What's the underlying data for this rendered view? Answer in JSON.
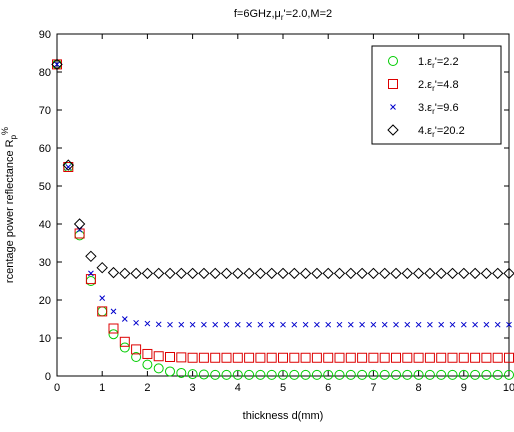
{
  "chart_data": {
    "type": "scatter",
    "title": "f=6GHz,μ",
    "title_sub": "r",
    "title_rest": "'=2.0,M=2",
    "xlabel": "thickness d(mm)",
    "ylabel_main": "rcentage power reflectance R",
    "ylabel_sub": "p",
    "ylabel_sup": "%",
    "xlim": [
      0,
      10
    ],
    "ylim": [
      0,
      90
    ],
    "xticks": [
      "0",
      "1",
      "2",
      "3",
      "4",
      "5",
      "6",
      "7",
      "8",
      "9",
      "10"
    ],
    "yticks": [
      "0",
      "10",
      "20",
      "30",
      "40",
      "50",
      "60",
      "70",
      "80",
      "90"
    ],
    "grid": false,
    "legend_position": "top-right",
    "series": [
      {
        "name": "1.ε",
        "name_sub": "r",
        "name_rest": "'=2.2",
        "marker": "circle",
        "color": "#00cc00",
        "x": [
          0,
          0.25,
          0.5,
          0.75,
          1,
          1.25,
          1.5,
          1.75,
          2,
          2.25,
          2.5,
          2.75,
          3,
          3.25,
          3.5,
          3.75,
          4,
          4.25,
          4.5,
          4.75,
          5,
          5.25,
          5.5,
          5.75,
          6,
          6.25,
          6.5,
          6.75,
          7,
          7.25,
          7.5,
          7.75,
          8,
          8.25,
          8.5,
          8.75,
          9,
          9.25,
          9.5,
          9.75,
          10
        ],
        "y": [
          82,
          55,
          37,
          25,
          17,
          11,
          7.5,
          5,
          3,
          2,
          1.2,
          0.8,
          0.5,
          0.4,
          0.3,
          0.3,
          0.3,
          0.3,
          0.3,
          0.3,
          0.3,
          0.3,
          0.3,
          0.3,
          0.3,
          0.3,
          0.3,
          0.3,
          0.3,
          0.3,
          0.3,
          0.3,
          0.3,
          0.3,
          0.3,
          0.3,
          0.3,
          0.3,
          0.3,
          0.3,
          0.3
        ]
      },
      {
        "name": "2.ε",
        "name_sub": "r",
        "name_rest": "'=4.8",
        "marker": "square",
        "color": "#dd0000",
        "x": [
          0,
          0.25,
          0.5,
          0.75,
          1,
          1.25,
          1.5,
          1.75,
          2,
          2.25,
          2.5,
          2.75,
          3,
          3.25,
          3.5,
          3.75,
          4,
          4.25,
          4.5,
          4.75,
          5,
          5.25,
          5.5,
          5.75,
          6,
          6.25,
          6.5,
          6.75,
          7,
          7.25,
          7.5,
          7.75,
          8,
          8.25,
          8.5,
          8.75,
          9,
          9.25,
          9.5,
          9.75,
          10
        ],
        "y": [
          82,
          55,
          37.5,
          25.5,
          17,
          12.5,
          9,
          7,
          5.8,
          5.2,
          5,
          4.9,
          4.8,
          4.8,
          4.8,
          4.8,
          4.8,
          4.8,
          4.8,
          4.8,
          4.8,
          4.8,
          4.8,
          4.8,
          4.8,
          4.8,
          4.8,
          4.8,
          4.8,
          4.8,
          4.8,
          4.8,
          4.8,
          4.8,
          4.8,
          4.8,
          4.8,
          4.8,
          4.8,
          4.8,
          4.8
        ]
      },
      {
        "name": "3.ε",
        "name_sub": "r",
        "name_rest": "'=9.6",
        "marker": "x",
        "color": "#0000cc",
        "x": [
          0,
          0.25,
          0.5,
          0.75,
          1,
          1.25,
          1.5,
          1.75,
          2,
          2.25,
          2.5,
          2.75,
          3,
          3.25,
          3.5,
          3.75,
          4,
          4.25,
          4.5,
          4.75,
          5,
          5.25,
          5.5,
          5.75,
          6,
          6.25,
          6.5,
          6.75,
          7,
          7.25,
          7.5,
          7.75,
          8,
          8.25,
          8.5,
          8.75,
          9,
          9.25,
          9.5,
          9.75,
          10
        ],
        "y": [
          82,
          55,
          38.5,
          27,
          20.5,
          17,
          15,
          14,
          13.8,
          13.6,
          13.5,
          13.5,
          13.5,
          13.5,
          13.5,
          13.5,
          13.5,
          13.5,
          13.5,
          13.5,
          13.5,
          13.5,
          13.5,
          13.5,
          13.5,
          13.5,
          13.5,
          13.5,
          13.5,
          13.5,
          13.5,
          13.5,
          13.5,
          13.5,
          13.5,
          13.5,
          13.5,
          13.5,
          13.5,
          13.5,
          13.5
        ]
      },
      {
        "name": "4.ε",
        "name_sub": "r",
        "name_rest": "'=20.2",
        "marker": "diamond",
        "color": "#000000",
        "x": [
          0,
          0.25,
          0.5,
          0.75,
          1,
          1.25,
          1.5,
          1.75,
          2,
          2.25,
          2.5,
          2.75,
          3,
          3.25,
          3.5,
          3.75,
          4,
          4.25,
          4.5,
          4.75,
          5,
          5.25,
          5.5,
          5.75,
          6,
          6.25,
          6.5,
          6.75,
          7,
          7.25,
          7.5,
          7.75,
          8,
          8.25,
          8.5,
          8.75,
          9,
          9.25,
          9.5,
          9.75,
          10
        ],
        "y": [
          82,
          55.5,
          40,
          31.5,
          28.5,
          27.2,
          27,
          27,
          27,
          27,
          27,
          27,
          27,
          27,
          27,
          27,
          27,
          27,
          27,
          27,
          27,
          27,
          27,
          27,
          27,
          27,
          27,
          27,
          27,
          27,
          27,
          27,
          27,
          27,
          27,
          27,
          27,
          27,
          27,
          27,
          27
        ]
      }
    ]
  }
}
